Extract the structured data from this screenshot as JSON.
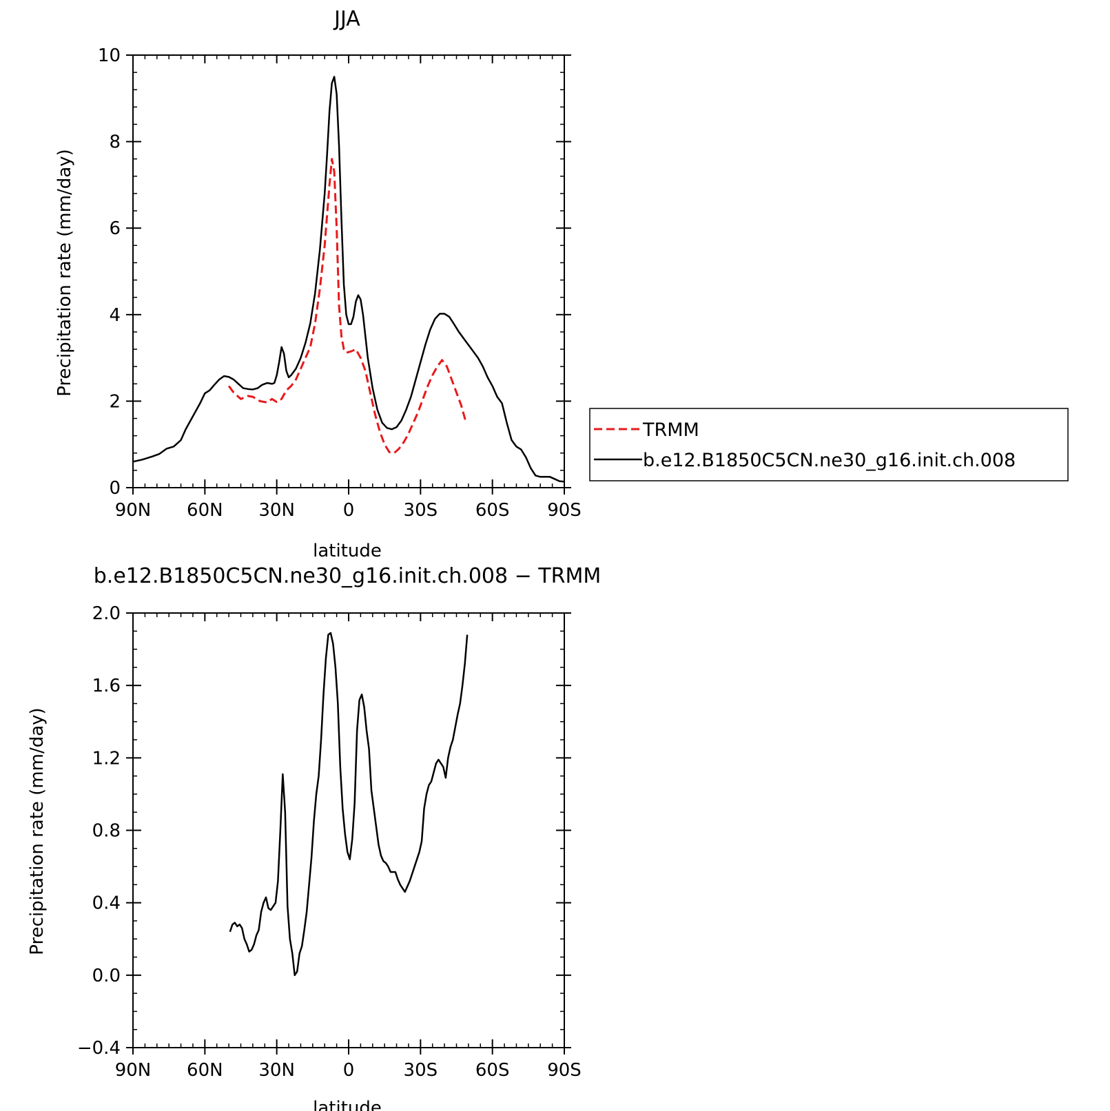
{
  "chart_data": [
    {
      "type": "line",
      "title": "JJA",
      "xlabel": "latitude",
      "ylabel": "Precipitation rate (mm/day)",
      "xlim": [
        90,
        -90
      ],
      "ylim": [
        0,
        10
      ],
      "x_tick_values": [
        90,
        60,
        30,
        0,
        -30,
        -60,
        -90
      ],
      "x_tick_labels": [
        "90N",
        "60N",
        "30N",
        "0",
        "30S",
        "60S",
        "90S"
      ],
      "y_tick_values": [
        0,
        2,
        4,
        6,
        8,
        10
      ],
      "y_tick_labels": [
        "0",
        "2",
        "4",
        "6",
        "8",
        "10"
      ],
      "legend_position": "right",
      "series": [
        {
          "name": "TRMM",
          "color": "#e8191b",
          "dash": "dashed",
          "points": [
            [
              50,
              2.35
            ],
            [
              48,
              2.2
            ],
            [
              45,
              2.05
            ],
            [
              42,
              2.12
            ],
            [
              40,
              2.1
            ],
            [
              37,
              2.0
            ],
            [
              34,
              1.97
            ],
            [
              32,
              2.05
            ],
            [
              30,
              1.98
            ],
            [
              28,
              2.05
            ],
            [
              26,
              2.25
            ],
            [
              24,
              2.35
            ],
            [
              22,
              2.5
            ],
            [
              20,
              2.75
            ],
            [
              18,
              3.0
            ],
            [
              16,
              3.25
            ],
            [
              14,
              3.8
            ],
            [
              12,
              4.6
            ],
            [
              10,
              5.6
            ],
            [
              9,
              6.3
            ],
            [
              8,
              7.0
            ],
            [
              7,
              7.6
            ],
            [
              6,
              7.3
            ],
            [
              5,
              6.0
            ],
            [
              4,
              4.2
            ],
            [
              3,
              3.5
            ],
            [
              2,
              3.2
            ],
            [
              1,
              3.12
            ],
            [
              -1,
              3.15
            ],
            [
              -3,
              3.2
            ],
            [
              -5,
              3.0
            ],
            [
              -7,
              2.7
            ],
            [
              -9,
              2.2
            ],
            [
              -11,
              1.7
            ],
            [
              -13,
              1.3
            ],
            [
              -15,
              1.0
            ],
            [
              -17,
              0.82
            ],
            [
              -19,
              0.8
            ],
            [
              -21,
              0.9
            ],
            [
              -23,
              1.05
            ],
            [
              -25,
              1.25
            ],
            [
              -27,
              1.5
            ],
            [
              -29,
              1.75
            ],
            [
              -31,
              2.05
            ],
            [
              -33,
              2.35
            ],
            [
              -35,
              2.6
            ],
            [
              -37,
              2.8
            ],
            [
              -39,
              2.95
            ],
            [
              -41,
              2.8
            ],
            [
              -43,
              2.5
            ],
            [
              -45,
              2.2
            ],
            [
              -47,
              1.9
            ],
            [
              -49,
              1.5
            ]
          ]
        },
        {
          "name": "b.e12.B1850C5CN.ne30_g16.init.ch.008",
          "color": "#000000",
          "dash": "solid",
          "points": [
            [
              90,
              0.6
            ],
            [
              86,
              0.65
            ],
            [
              82,
              0.72
            ],
            [
              79,
              0.78
            ],
            [
              76,
              0.9
            ],
            [
              73,
              0.95
            ],
            [
              70,
              1.1
            ],
            [
              68,
              1.35
            ],
            [
              65,
              1.65
            ],
            [
              62,
              1.95
            ],
            [
              60,
              2.18
            ],
            [
              58,
              2.25
            ],
            [
              56,
              2.38
            ],
            [
              54,
              2.5
            ],
            [
              52,
              2.58
            ],
            [
              50,
              2.56
            ],
            [
              48,
              2.5
            ],
            [
              46,
              2.4
            ],
            [
              44,
              2.3
            ],
            [
              42,
              2.28
            ],
            [
              40,
              2.27
            ],
            [
              38,
              2.3
            ],
            [
              36,
              2.38
            ],
            [
              34,
              2.42
            ],
            [
              32,
              2.4
            ],
            [
              31,
              2.42
            ],
            [
              30,
              2.6
            ],
            [
              29,
              2.9
            ],
            [
              28,
              3.25
            ],
            [
              27,
              3.1
            ],
            [
              26,
              2.7
            ],
            [
              25,
              2.55
            ],
            [
              24,
              2.6
            ],
            [
              22,
              2.75
            ],
            [
              20,
              3.0
            ],
            [
              18,
              3.35
            ],
            [
              16,
              3.8
            ],
            [
              14,
              4.5
            ],
            [
              12,
              5.5
            ],
            [
              10,
              6.8
            ],
            [
              9,
              7.7
            ],
            [
              8,
              8.7
            ],
            [
              7,
              9.35
            ],
            [
              6,
              9.5
            ],
            [
              5,
              9.1
            ],
            [
              4,
              7.9
            ],
            [
              3,
              6.2
            ],
            [
              2,
              4.7
            ],
            [
              1,
              4.0
            ],
            [
              0,
              3.78
            ],
            [
              -1,
              3.78
            ],
            [
              -2,
              3.95
            ],
            [
              -3,
              4.3
            ],
            [
              -4,
              4.45
            ],
            [
              -5,
              4.35
            ],
            [
              -6,
              4.0
            ],
            [
              -7,
              3.5
            ],
            [
              -8,
              3.0
            ],
            [
              -10,
              2.3
            ],
            [
              -12,
              1.8
            ],
            [
              -14,
              1.5
            ],
            [
              -16,
              1.38
            ],
            [
              -18,
              1.35
            ],
            [
              -20,
              1.4
            ],
            [
              -22,
              1.55
            ],
            [
              -24,
              1.8
            ],
            [
              -26,
              2.1
            ],
            [
              -28,
              2.5
            ],
            [
              -30,
              2.9
            ],
            [
              -32,
              3.3
            ],
            [
              -34,
              3.65
            ],
            [
              -36,
              3.9
            ],
            [
              -38,
              4.02
            ],
            [
              -40,
              4.02
            ],
            [
              -42,
              3.95
            ],
            [
              -44,
              3.78
            ],
            [
              -46,
              3.6
            ],
            [
              -48,
              3.45
            ],
            [
              -50,
              3.3
            ],
            [
              -52,
              3.15
            ],
            [
              -54,
              3.0
            ],
            [
              -56,
              2.8
            ],
            [
              -58,
              2.55
            ],
            [
              -60,
              2.35
            ],
            [
              -62,
              2.1
            ],
            [
              -64,
              1.95
            ],
            [
              -66,
              1.5
            ],
            [
              -68,
              1.1
            ],
            [
              -70,
              0.95
            ],
            [
              -72,
              0.88
            ],
            [
              -74,
              0.7
            ],
            [
              -76,
              0.45
            ],
            [
              -78,
              0.28
            ],
            [
              -80,
              0.25
            ],
            [
              -82,
              0.25
            ],
            [
              -84,
              0.25
            ],
            [
              -86,
              0.2
            ],
            [
              -88,
              0.15
            ],
            [
              -90,
              0.14
            ]
          ]
        }
      ]
    },
    {
      "type": "line",
      "title": "b.e12.B1850C5CN.ne30_g16.init.ch.008 − TRMM",
      "xlabel": "latitude",
      "ylabel": "Precipitation rate (mm/day)",
      "xlim": [
        90,
        -90
      ],
      "ylim": [
        -0.4,
        2.0
      ],
      "x_tick_values": [
        90,
        60,
        30,
        0,
        -30,
        -60,
        -90
      ],
      "x_tick_labels": [
        "90N",
        "60N",
        "30N",
        "0",
        "30S",
        "60S",
        "90S"
      ],
      "y_tick_values": [
        -0.4,
        0.0,
        0.4,
        0.8,
        1.2,
        1.6,
        2.0
      ],
      "y_tick_labels": [
        "−0.4",
        "0.0",
        "0.4",
        "0.8",
        "1.2",
        "1.6",
        "2.0"
      ],
      "series": [
        {
          "color": "#000000",
          "dash": "solid",
          "points": [
            [
              49.5,
              0.24
            ],
            [
              48.5,
              0.28
            ],
            [
              47.5,
              0.29
            ],
            [
              46.5,
              0.27
            ],
            [
              45.5,
              0.28
            ],
            [
              44.5,
              0.26
            ],
            [
              43.5,
              0.2
            ],
            [
              42.5,
              0.17
            ],
            [
              41.5,
              0.13
            ],
            [
              40.5,
              0.14
            ],
            [
              39.5,
              0.17
            ],
            [
              38.5,
              0.22
            ],
            [
              37.5,
              0.25
            ],
            [
              36.5,
              0.35
            ],
            [
              35.5,
              0.4
            ],
            [
              34.5,
              0.43
            ],
            [
              33.5,
              0.37
            ],
            [
              32.5,
              0.36
            ],
            [
              31.5,
              0.38
            ],
            [
              30.5,
              0.4
            ],
            [
              29.5,
              0.52
            ],
            [
              28.5,
              0.8
            ],
            [
              27.5,
              1.11
            ],
            [
              26.5,
              0.9
            ],
            [
              25.5,
              0.38
            ],
            [
              24.5,
              0.2
            ],
            [
              23.5,
              0.12
            ],
            [
              22.5,
              0.0
            ],
            [
              21.5,
              0.02
            ],
            [
              20.5,
              0.12
            ],
            [
              19.5,
              0.16
            ],
            [
              18.5,
              0.25
            ],
            [
              17.5,
              0.35
            ],
            [
              16.5,
              0.5
            ],
            [
              15.5,
              0.65
            ],
            [
              14.5,
              0.85
            ],
            [
              13.5,
              1.0
            ],
            [
              12.5,
              1.1
            ],
            [
              11.5,
              1.3
            ],
            [
              10.5,
              1.55
            ],
            [
              9.5,
              1.75
            ],
            [
              8.5,
              1.88
            ],
            [
              7.5,
              1.89
            ],
            [
              6.5,
              1.83
            ],
            [
              5.5,
              1.7
            ],
            [
              4.5,
              1.5
            ],
            [
              3.5,
              1.15
            ],
            [
              2.5,
              0.92
            ],
            [
              1.5,
              0.78
            ],
            [
              0.5,
              0.68
            ],
            [
              -0.5,
              0.64
            ],
            [
              -1.5,
              0.75
            ],
            [
              -2.5,
              0.95
            ],
            [
              -3.5,
              1.35
            ],
            [
              -4.5,
              1.52
            ],
            [
              -5.5,
              1.55
            ],
            [
              -6.5,
              1.48
            ],
            [
              -7.5,
              1.35
            ],
            [
              -8.5,
              1.25
            ],
            [
              -9.5,
              1.02
            ],
            [
              -10.5,
              0.92
            ],
            [
              -11.5,
              0.82
            ],
            [
              -12.5,
              0.72
            ],
            [
              -13.5,
              0.66
            ],
            [
              -14.5,
              0.63
            ],
            [
              -15.5,
              0.62
            ],
            [
              -16.5,
              0.6
            ],
            [
              -17.5,
              0.57
            ],
            [
              -18.5,
              0.57
            ],
            [
              -19.5,
              0.57
            ],
            [
              -20.5,
              0.53
            ],
            [
              -21.5,
              0.5
            ],
            [
              -22.5,
              0.48
            ],
            [
              -23.5,
              0.46
            ],
            [
              -24.5,
              0.49
            ],
            [
              -25.5,
              0.52
            ],
            [
              -26.5,
              0.56
            ],
            [
              -27.5,
              0.6
            ],
            [
              -28.5,
              0.64
            ],
            [
              -29.5,
              0.68
            ],
            [
              -30.5,
              0.74
            ],
            [
              -31.5,
              0.92
            ],
            [
              -32.5,
              1.0
            ],
            [
              -33.5,
              1.05
            ],
            [
              -34.5,
              1.07
            ],
            [
              -35.5,
              1.12
            ],
            [
              -36.5,
              1.17
            ],
            [
              -37.5,
              1.19
            ],
            [
              -38.5,
              1.17
            ],
            [
              -39.5,
              1.15
            ],
            [
              -40.5,
              1.09
            ],
            [
              -41.5,
              1.2
            ],
            [
              -42.5,
              1.26
            ],
            [
              -43.5,
              1.3
            ],
            [
              -44.5,
              1.37
            ],
            [
              -45.5,
              1.44
            ],
            [
              -46.5,
              1.5
            ],
            [
              -47.5,
              1.6
            ],
            [
              -48.5,
              1.72
            ],
            [
              -49.5,
              1.88
            ]
          ]
        }
      ]
    }
  ]
}
